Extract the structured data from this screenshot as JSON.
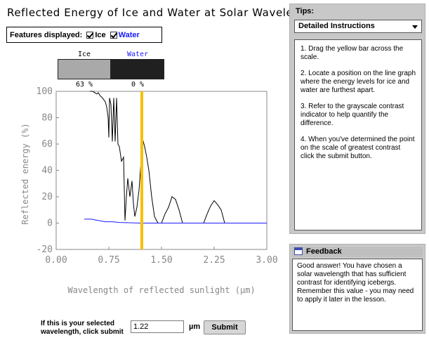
{
  "title": "Reflected Energy of Ice and Water at Solar Wavelengths",
  "features": {
    "label": "Features displayed:",
    "items": [
      {
        "label": "Ice",
        "checked": true
      },
      {
        "label": "Water",
        "checked": true
      }
    ]
  },
  "contrast_indicator": {
    "ice": {
      "label": "Ice",
      "percent": "63 %",
      "shade": "#a9a9a9"
    },
    "water": {
      "label": "Water",
      "percent": "0 %",
      "shade": "#202020"
    }
  },
  "chart_data": {
    "type": "line",
    "xlabel": "Wavelength of reflected sunlight (µm)",
    "ylabel": "Reflected energy (%)",
    "xlim": [
      0.0,
      3.0
    ],
    "ylim": [
      -20,
      100
    ],
    "xticks": [
      "0.00",
      "0.75",
      "1.50",
      "2.25",
      "3.00"
    ],
    "yticks": [
      "100",
      "80",
      "60",
      "40",
      "20",
      "0",
      "-20"
    ],
    "grid": false,
    "selected_wavelength": 1.22,
    "series": [
      {
        "name": "Ice",
        "color": "#000000",
        "x": [
          0.48,
          0.52,
          0.55,
          0.58,
          0.6,
          0.62,
          0.64,
          0.66,
          0.7,
          0.72,
          0.74,
          0.75,
          0.76,
          0.78,
          0.8,
          0.82,
          0.84,
          0.86,
          0.88,
          0.9,
          0.93,
          0.96,
          0.98,
          1.0,
          1.02,
          1.05,
          1.08,
          1.1,
          1.12,
          1.15,
          1.18,
          1.2,
          1.23,
          1.26,
          1.29,
          1.32,
          1.36,
          1.4,
          1.45,
          1.5,
          1.55,
          1.6,
          1.65,
          1.7,
          1.75,
          1.8,
          1.9,
          2.0,
          2.1,
          2.15,
          2.2,
          2.25,
          2.3,
          2.35,
          2.4,
          2.45,
          2.5
        ],
        "y": [
          100,
          100,
          99,
          98,
          99,
          97,
          96,
          95,
          92,
          88,
          80,
          65,
          95,
          90,
          62,
          95,
          62,
          95,
          60,
          58,
          47,
          50,
          2,
          20,
          34,
          20,
          32,
          15,
          5,
          12,
          25,
          40,
          64,
          58,
          50,
          40,
          20,
          5,
          0,
          0,
          7,
          12,
          20,
          18,
          10,
          0,
          0,
          0,
          0,
          7,
          13,
          17,
          14,
          10,
          0,
          0,
          0
        ]
      },
      {
        "name": "Water",
        "color": "#1a1aff",
        "x": [
          0.4,
          0.5,
          0.6,
          0.7,
          0.8,
          0.9,
          1.0,
          1.2,
          1.5,
          2.0,
          2.5,
          3.0
        ],
        "y": [
          3,
          3,
          2,
          1,
          1,
          0.5,
          0.3,
          0,
          0,
          0,
          0,
          0
        ]
      }
    ]
  },
  "submit": {
    "label_line1": "If this is your selected",
    "label_line2": "wavelength, click submit",
    "value": "1.22",
    "unit": "µm",
    "button_label": "Submit"
  },
  "tips": {
    "title": "Tips:",
    "selected": "Detailed Instructions",
    "items": [
      "1. Drag the yellow bar across the scale.",
      "2. Locate a position on the line graph where the energy levels for ice and water are furthest apart.",
      "3. Refer to the grayscale contrast indicator to help quantify the difference.",
      "4. When you've determined the point on the scale of greatest contrast click the submit button."
    ]
  },
  "feedback": {
    "title": "Feedback",
    "text": "Good answer!  You have chosen a solar wavelength that has sufficient contrast for identifying icebergs. Remember this value - you may need to apply it later in the lesson."
  },
  "colors": {
    "selector_bar": "#f5c000",
    "water_text": "#1a1aff",
    "panel_bg": "#c8c8c8"
  }
}
